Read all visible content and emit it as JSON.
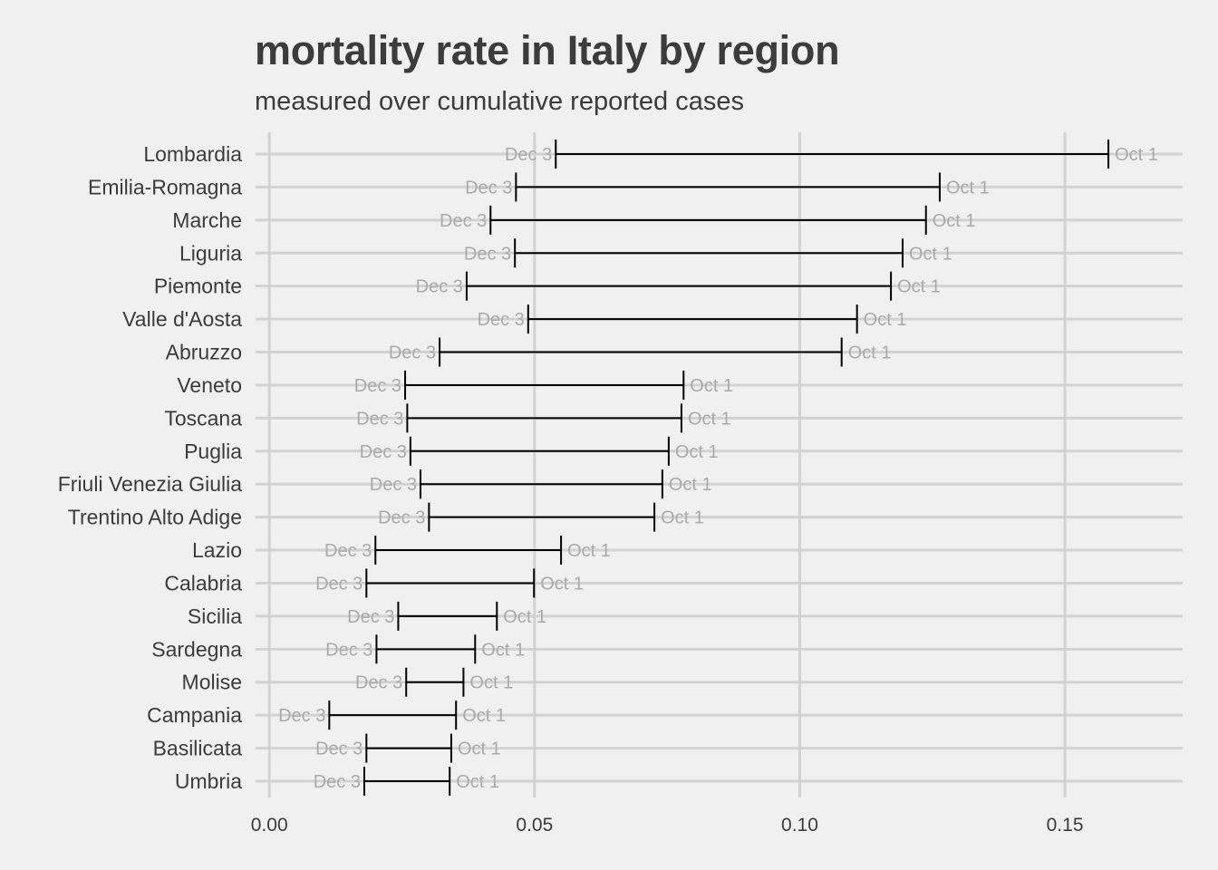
{
  "chart_data": {
    "type": "dumbbell",
    "title": "mortality rate in Italy by region",
    "subtitle": "measured over cumulative reported cases",
    "xlabel": "",
    "ylabel": "",
    "xlim": [
      -0.0026,
      0.1722
    ],
    "x_ticks": [
      0.0,
      0.05,
      0.1,
      0.15
    ],
    "x_tick_labels": [
      "0.00",
      "0.05",
      "0.10",
      "0.15"
    ],
    "grid": true,
    "start_label": "Oct 1",
    "end_label": "Dec 3",
    "categories": [
      "Lombardia",
      "Emilia-Romagna",
      "Marche",
      "Liguria",
      "Piemonte",
      "Valle d'Aosta",
      "Abruzzo",
      "Veneto",
      "Toscana",
      "Puglia",
      "Friuli Venezia Giulia",
      "Trentino Alto Adige",
      "Lazio",
      "Calabria",
      "Sicilia",
      "Sardegna",
      "Molise",
      "Campania",
      "Basilicata",
      "Umbria"
    ],
    "series": [
      {
        "name": "Oct 1",
        "values": [
          0.1582,
          0.1264,
          0.1238,
          0.1194,
          0.1172,
          0.1108,
          0.1079,
          0.0781,
          0.0777,
          0.0753,
          0.0741,
          0.0726,
          0.055,
          0.0499,
          0.0429,
          0.0388,
          0.0366,
          0.0352,
          0.0343,
          0.034
        ]
      },
      {
        "name": "Dec 3",
        "values": [
          0.054,
          0.0465,
          0.0417,
          0.0463,
          0.0372,
          0.0488,
          0.0321,
          0.0256,
          0.026,
          0.0266,
          0.0285,
          0.0301,
          0.02,
          0.0183,
          0.0243,
          0.0202,
          0.0258,
          0.0113,
          0.0183,
          0.0179
        ]
      }
    ]
  },
  "colors": {
    "background": "#f0f0f0",
    "grid": "#d2d2d2",
    "segment": "#000000",
    "annotation": "#aaaaaa",
    "text": "#3c3c3c"
  }
}
